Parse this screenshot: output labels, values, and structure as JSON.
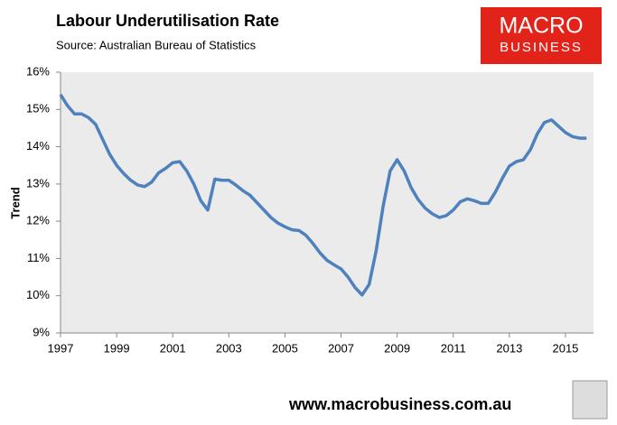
{
  "chart_data": {
    "type": "line",
    "title": "Labour Underutilisation Rate",
    "subtitle": "Source: Australian Bureau of Statistics",
    "y_label": "Trend",
    "brand": {
      "line1": "MACRO",
      "line2": "BUSINESS"
    },
    "footer": "www.macrobusiness.com.au",
    "color": "#4f81bd",
    "x": [
      1997,
      1997.25,
      1997.5,
      1997.75,
      1998,
      1998.25,
      1998.5,
      1998.75,
      1999,
      1999.25,
      1999.5,
      1999.75,
      2000,
      2000.25,
      2000.5,
      2000.75,
      2001,
      2001.25,
      2001.5,
      2001.75,
      2002,
      2002.25,
      2002.5,
      2002.75,
      2003,
      2003.25,
      2003.5,
      2003.75,
      2004,
      2004.25,
      2004.5,
      2004.75,
      2005,
      2005.25,
      2005.5,
      2005.75,
      2006,
      2006.25,
      2006.5,
      2006.75,
      2007,
      2007.25,
      2007.5,
      2007.75,
      2008,
      2008.25,
      2008.5,
      2008.75,
      2009,
      2009.25,
      2009.5,
      2009.75,
      2010,
      2010.25,
      2010.5,
      2010.75,
      2011,
      2011.25,
      2011.5,
      2011.75,
      2012,
      2012.25,
      2012.5,
      2012.75,
      2013,
      2013.25,
      2013.5,
      2013.75,
      2014,
      2014.25,
      2014.5,
      2014.75,
      2015,
      2015.25,
      2015.5,
      2015.75
    ],
    "values": [
      15.4,
      15.1,
      14.88,
      14.88,
      14.78,
      14.6,
      14.2,
      13.8,
      13.5,
      13.28,
      13.1,
      12.97,
      12.93,
      13.05,
      13.3,
      13.42,
      13.57,
      13.6,
      13.35,
      13.0,
      12.55,
      12.3,
      13.13,
      13.1,
      13.1,
      12.97,
      12.82,
      12.7,
      12.5,
      12.3,
      12.1,
      11.95,
      11.85,
      11.77,
      11.75,
      11.62,
      11.4,
      11.15,
      10.95,
      10.83,
      10.72,
      10.5,
      10.22,
      10.02,
      10.3,
      11.2,
      12.4,
      13.35,
      13.65,
      13.35,
      12.9,
      12.58,
      12.35,
      12.2,
      12.1,
      12.15,
      12.3,
      12.52,
      12.6,
      12.55,
      12.48,
      12.48,
      12.78,
      13.15,
      13.48,
      13.6,
      13.65,
      13.92,
      14.35,
      14.65,
      14.72,
      14.55,
      14.38,
      14.27,
      14.23,
      14.23
    ],
    "xlim": [
      1997,
      2016
    ],
    "xticks": [
      1997,
      1999,
      2001,
      2003,
      2005,
      2007,
      2009,
      2011,
      2013,
      2015
    ],
    "ylim": [
      9,
      16
    ],
    "yticks": [
      {
        "value": 9,
        "label": "9%"
      },
      {
        "value": 10,
        "label": "10%"
      },
      {
        "value": 11,
        "label": "11%"
      },
      {
        "value": 12,
        "label": "12%"
      },
      {
        "value": 13,
        "label": "13%"
      },
      {
        "value": 14,
        "label": "14%"
      },
      {
        "value": 15,
        "label": "15%"
      },
      {
        "value": 16,
        "label": "16%"
      }
    ]
  }
}
